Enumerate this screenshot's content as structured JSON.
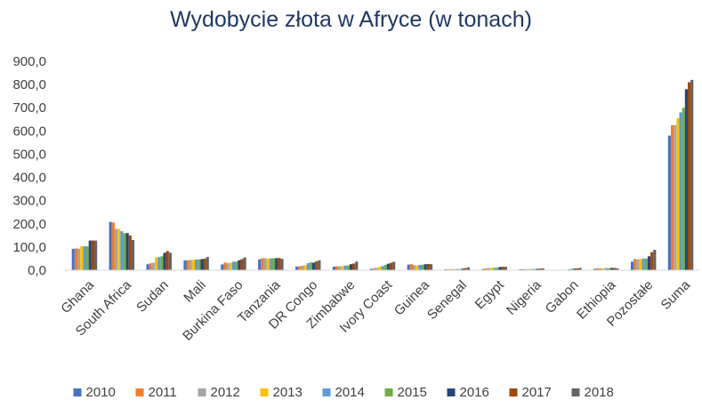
{
  "chart_data": {
    "type": "bar",
    "title": "Wydobycie złota w Afryce (w tonach)",
    "xlabel": "",
    "ylabel": "",
    "ylim": [
      0,
      900
    ],
    "yticks": [
      "0,0",
      "100,0",
      "200,0",
      "300,0",
      "400,0",
      "500,0",
      "600,0",
      "700,0",
      "800,0",
      "900,0"
    ],
    "grid": false,
    "legend_position": "bottom",
    "categories": [
      "Ghana",
      "South Africa",
      "Sudan",
      "Mali",
      "Burkina Faso",
      "Tanzania",
      "DR Congo",
      "Zimbabwe",
      "Ivory Coast",
      "Guinea",
      "Senegal",
      "Egypt",
      "Nigeria",
      "Gabon",
      "Ethiopia",
      "Pozostałe",
      "Suma"
    ],
    "series": [
      {
        "name": "2010",
        "color": "#4472c4",
        "values": [
          92,
          208,
          26,
          42,
          25,
          47,
          15,
          15,
          6,
          24,
          4,
          5,
          4,
          1,
          6,
          37,
          580
        ]
      },
      {
        "name": "2011",
        "color": "#ed7d31",
        "values": [
          94,
          205,
          30,
          43,
          33,
          52,
          17,
          17,
          8,
          26,
          4,
          8,
          5,
          1,
          8,
          48,
          625
        ]
      },
      {
        "name": "2012",
        "color": "#a5a5a5",
        "values": [
          93,
          178,
          32,
          44,
          30,
          52,
          20,
          17,
          10,
          22,
          5,
          9,
          5,
          1,
          8,
          47,
          625
        ]
      },
      {
        "name": "2013",
        "color": "#ffc000",
        "values": [
          103,
          178,
          55,
          45,
          33,
          50,
          22,
          18,
          15,
          21,
          5,
          10,
          5,
          1,
          8,
          48,
          655
        ]
      },
      {
        "name": "2014",
        "color": "#5b9bd5",
        "values": [
          103,
          168,
          56,
          46,
          37,
          51,
          30,
          20,
          18,
          23,
          5,
          10,
          5,
          4,
          9,
          50,
          680
        ]
      },
      {
        "name": "2015",
        "color": "#70ad47",
        "values": [
          103,
          160,
          60,
          47,
          37,
          52,
          34,
          21,
          23,
          24,
          5,
          11,
          5,
          6,
          9,
          50,
          700
        ]
      },
      {
        "name": "2016",
        "color": "#264478",
        "values": [
          128,
          160,
          75,
          48,
          43,
          52,
          33,
          26,
          28,
          26,
          7,
          14,
          6,
          7,
          10,
          60,
          780
        ]
      },
      {
        "name": "2017",
        "color": "#9e480e",
        "values": [
          128,
          150,
          83,
          50,
          48,
          53,
          38,
          29,
          32,
          27,
          9,
          15,
          7,
          8,
          10,
          78,
          810
        ]
      },
      {
        "name": "2018",
        "color": "#636363",
        "values": [
          128,
          130,
          76,
          57,
          55,
          49,
          43,
          37,
          36,
          26,
          12,
          15,
          8,
          10,
          8,
          88,
          820
        ]
      }
    ]
  }
}
